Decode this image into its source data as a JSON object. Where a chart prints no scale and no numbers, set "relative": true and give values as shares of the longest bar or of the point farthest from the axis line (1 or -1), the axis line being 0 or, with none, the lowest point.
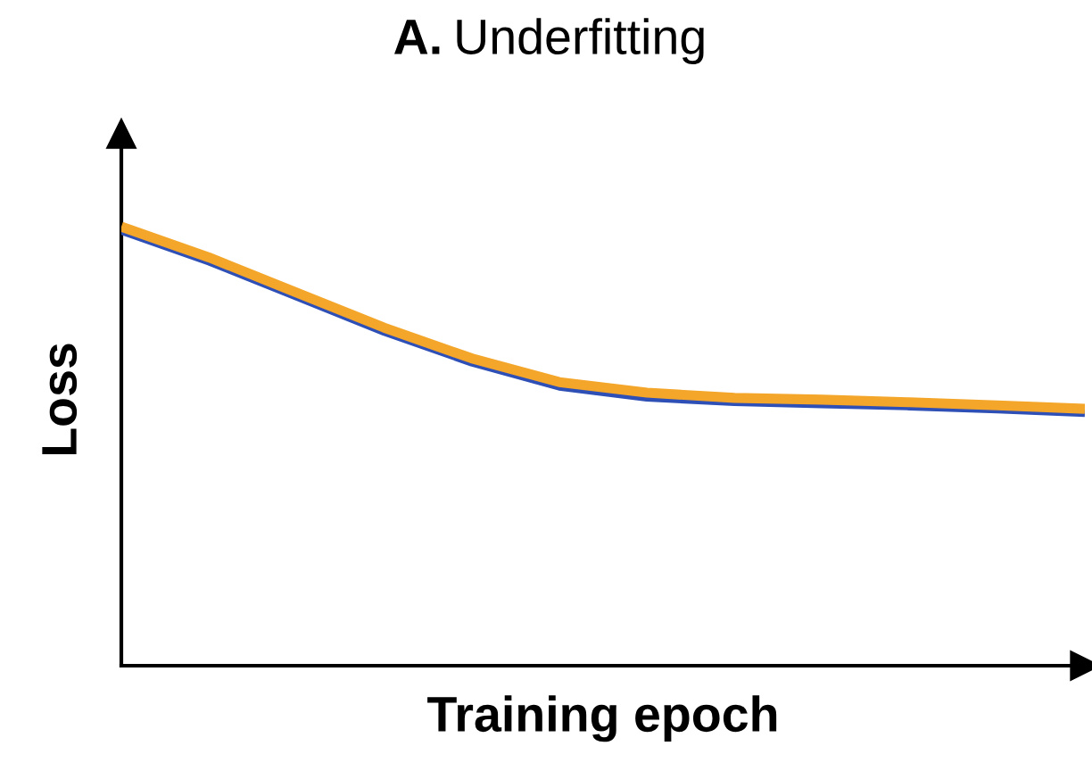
{
  "chart_data": {
    "type": "line",
    "title": "A. Underfitting",
    "xlabel": "Training epoch",
    "ylabel": "Loss",
    "relative": true,
    "categories": [
      null,
      null,
      null,
      null,
      null,
      null,
      null,
      null,
      null,
      null,
      null,
      null
    ],
    "series": [
      {
        "color": "#2e4fb5",
        "values": [
          0.99,
          0.92,
          0.84,
          0.76,
          0.69,
          0.635,
          0.61,
          0.6,
          0.595,
          0.59,
          0.583,
          0.575
        ]
      },
      {
        "color": "#f4a62a",
        "values": [
          1.0,
          0.93,
          0.85,
          0.77,
          0.7,
          0.646,
          0.622,
          0.61,
          0.606,
          0.6,
          0.593,
          0.585
        ]
      }
    ],
    "legend": false,
    "marker": "none",
    "line_style": "solid"
  }
}
